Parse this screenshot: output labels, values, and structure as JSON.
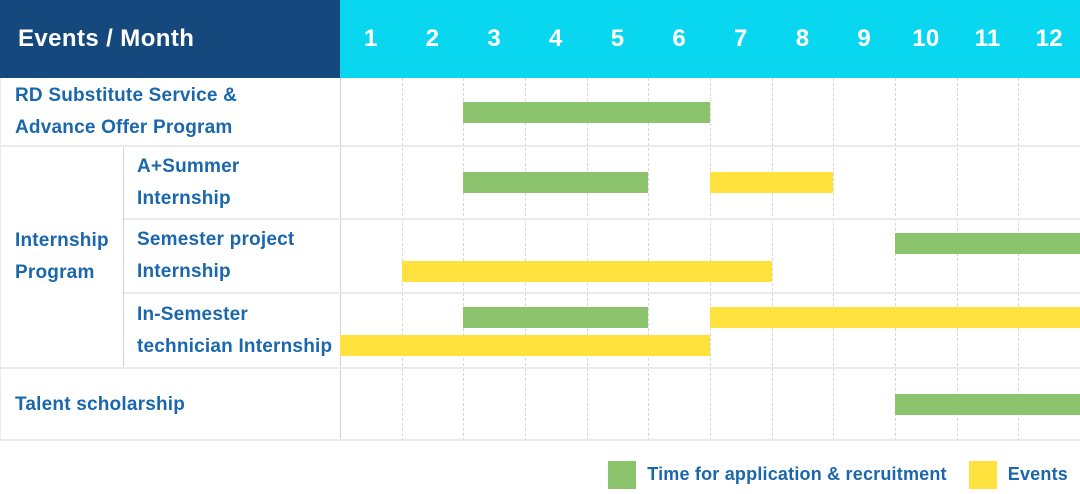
{
  "header": {
    "label": "Events / Month",
    "months": [
      "1",
      "2",
      "3",
      "4",
      "5",
      "6",
      "7",
      "8",
      "9",
      "10",
      "11",
      "12"
    ]
  },
  "colors": {
    "header_bg": "#15497e",
    "months_bg": "#09d7ef",
    "text_blue": "#1a67ab",
    "green": "#8cc46e",
    "yellow": "#ffe23e"
  },
  "group_cell": {
    "label": "Internship Program",
    "display": "Internship\nProgram"
  },
  "legend": [
    {
      "key": "application",
      "label": "Time for application & recruitment",
      "color": "#8cc46e"
    },
    {
      "key": "events",
      "label": "Events",
      "color": "#ffe23e"
    }
  ],
  "chart_data": {
    "type": "gantt",
    "title": "Events / Month",
    "x_axis": {
      "unit": "month",
      "ticks": [
        1,
        2,
        3,
        4,
        5,
        6,
        7,
        8,
        9,
        10,
        11,
        12
      ],
      "range": [
        1,
        12
      ]
    },
    "series": [
      {
        "key": "application",
        "name": "Time for application & recruitment",
        "color": "#8cc46e"
      },
      {
        "key": "events",
        "name": "Events",
        "color": "#ffe23e"
      }
    ],
    "rows": [
      {
        "label": "RD Substitute Service & Advance Offer Program",
        "display": "RD Substitute Service &\nAdvance Offer Program",
        "group": "",
        "bars": [
          {
            "series": "application",
            "start_month": 3,
            "end_month": 6,
            "lane": "single"
          }
        ]
      },
      {
        "label": "A+Summer Internship",
        "display": "A+Summer\nInternship",
        "group": "Internship Program",
        "bars": [
          {
            "series": "application",
            "start_month": 3,
            "end_month": 5,
            "lane": "single"
          },
          {
            "series": "events",
            "start_month": 7,
            "end_month": 8,
            "lane": "single"
          }
        ]
      },
      {
        "label": "Semester project Internship",
        "display": "Semester project\nInternship",
        "group": "Internship Program",
        "bars": [
          {
            "series": "application",
            "start_month": 10,
            "end_month": 12,
            "lane": "top"
          },
          {
            "series": "events",
            "start_month": 2,
            "end_month": 7,
            "lane": "bottom"
          }
        ]
      },
      {
        "label": "In-Semester technician Internship",
        "display": "In-Semester\ntechnician Internship",
        "group": "Internship Program",
        "bars": [
          {
            "series": "application",
            "start_month": 3,
            "end_month": 5,
            "lane": "top"
          },
          {
            "series": "events",
            "start_month": 7,
            "end_month": 12,
            "lane": "top"
          },
          {
            "series": "events",
            "start_month": 1,
            "end_month": 6,
            "lane": "bottom"
          }
        ]
      },
      {
        "label": "Talent scholarship",
        "display": "Talent scholarship",
        "group": "",
        "bars": [
          {
            "series": "application",
            "start_month": 10,
            "end_month": 12,
            "lane": "single"
          }
        ]
      }
    ],
    "legend_position": "bottom-right",
    "grid": "dashed-monthly"
  }
}
